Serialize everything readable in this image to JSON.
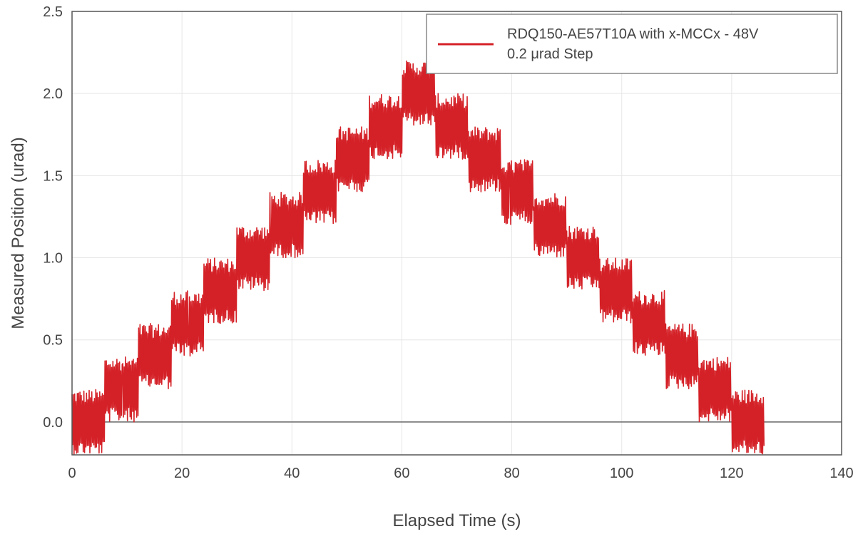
{
  "chart_data": {
    "type": "line",
    "title": "",
    "xlabel": "Elapsed Time (s)",
    "ylabel": "Measured Position (urad)",
    "xlim": [
      0,
      140
    ],
    "ylim": [
      -0.2,
      2.5
    ],
    "xticks": [
      0,
      20,
      40,
      60,
      80,
      100,
      120,
      140
    ],
    "yticks": [
      0.0,
      0.5,
      1.0,
      1.5,
      2.0,
      2.5
    ],
    "xtick_labels": [
      "0",
      "20",
      "40",
      "60",
      "80",
      "100",
      "120",
      "140"
    ],
    "ytick_labels": [
      "0.0",
      "0.5",
      "1.0",
      "1.5",
      "2.0",
      "2.5"
    ],
    "grid": true,
    "zero_line": true,
    "legend_position": "top-right",
    "series": [
      {
        "name": "RDQ150-AE57T10A with x-MCCx - 48V",
        "name_line2": "0.2 μrad Step",
        "color": "#d42127",
        "noise_band": 0.2,
        "x": [
          0,
          6,
          12,
          18,
          24,
          30,
          36,
          42,
          48,
          54,
          60,
          66,
          72,
          78,
          84,
          90,
          96,
          102,
          108,
          114,
          120,
          126
        ],
        "y": [
          0.0,
          0.2,
          0.4,
          0.6,
          0.8,
          1.0,
          1.2,
          1.4,
          1.6,
          1.8,
          2.0,
          1.8,
          1.6,
          1.4,
          1.2,
          1.0,
          0.8,
          0.6,
          0.4,
          0.2,
          0.0,
          0.0
        ]
      }
    ]
  }
}
